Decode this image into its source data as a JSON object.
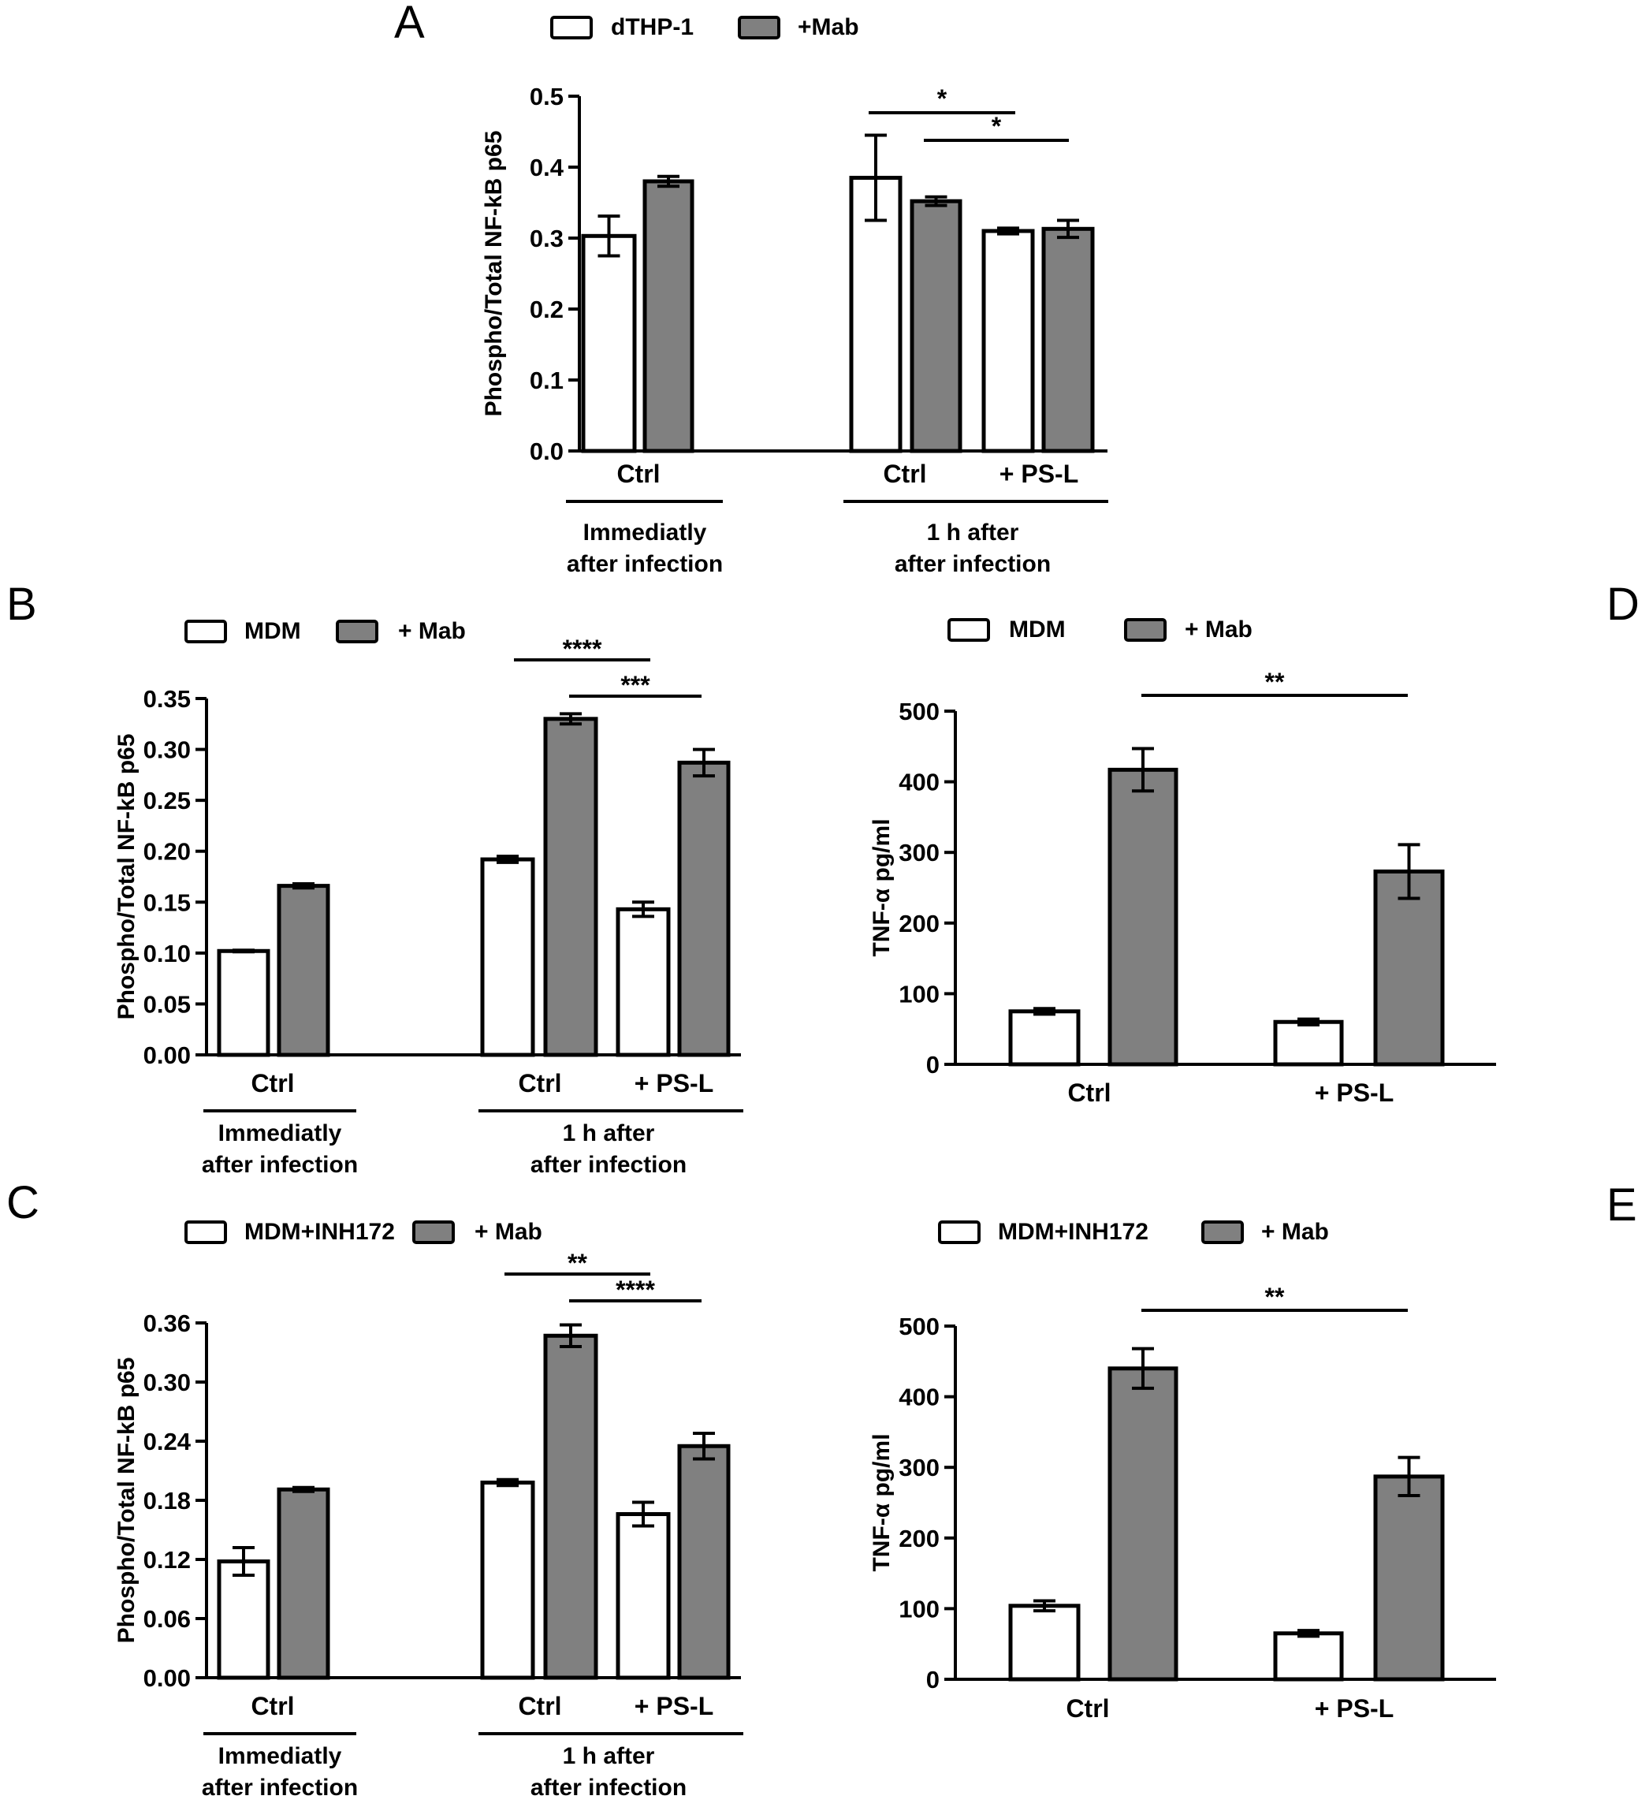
{
  "chart_data": [
    {
      "panel": "A",
      "type": "bar",
      "ylabel": "Phospho/Total NF-kB p65",
      "ylim": [
        0,
        0.5
      ],
      "yticks": [
        "0.0",
        "0.1",
        "0.2",
        "0.3",
        "0.4",
        "0.5"
      ],
      "legend": [
        {
          "name": "dTHP-1",
          "color": "#ffffff"
        },
        {
          "name": "+Mab",
          "color": "#808080"
        }
      ],
      "categories": [
        "Ctrl",
        "Ctrl",
        "+ PS-L"
      ],
      "groups": [
        {
          "label": "Immediatly\nafter infection"
        },
        {
          "label": "1 h after\nafter infection"
        }
      ],
      "series": [
        {
          "name": "dTHP-1",
          "values": [
            0.303,
            0.385,
            0.31
          ],
          "errors": [
            0.028,
            0.06,
            0.004
          ]
        },
        {
          "name": "+Mab",
          "values": [
            0.38,
            0.352,
            0.313
          ],
          "errors": [
            0.007,
            0.006,
            0.012
          ]
        }
      ],
      "annotations": [
        "*",
        "*"
      ]
    },
    {
      "panel": "B",
      "type": "bar",
      "ylabel": "Phospho/Total NF-kB p65",
      "ylim": [
        0,
        0.35
      ],
      "yticks": [
        "0.00",
        "0.05",
        "0.10",
        "0.15",
        "0.20",
        "0.25",
        "0.30",
        "0.35"
      ],
      "legend": [
        {
          "name": "MDM",
          "color": "#ffffff"
        },
        {
          "name": "+ Mab",
          "color": "#808080"
        }
      ],
      "categories": [
        "Ctrl",
        "Ctrl",
        "+ PS-L"
      ],
      "groups": [
        {
          "label": "Immediatly\nafter infection"
        },
        {
          "label": "1 h after\nafter infection"
        }
      ],
      "series": [
        {
          "name": "MDM",
          "values": [
            0.102,
            0.192,
            0.143
          ],
          "errors": [
            0.0008,
            0.003,
            0.007
          ]
        },
        {
          "name": "+ Mab",
          "values": [
            0.166,
            0.33,
            0.287
          ],
          "errors": [
            0.002,
            0.005,
            0.013
          ]
        }
      ],
      "annotations": [
        "****",
        "***"
      ]
    },
    {
      "panel": "C",
      "type": "bar",
      "ylabel": "Phospho/Total NF-kB p65",
      "ylim": [
        0,
        0.36
      ],
      "yticks": [
        "0.00",
        "0.06",
        "0.12",
        "0.18",
        "0.24",
        "0.30",
        "0.36"
      ],
      "legend": [
        {
          "name": "MDM+INH172",
          "color": "#ffffff"
        },
        {
          "name": "+ Mab",
          "color": "#808080"
        }
      ],
      "categories": [
        "Ctrl",
        "Ctrl",
        "+ PS-L"
      ],
      "groups": [
        {
          "label": "Immediatly\nafter infection"
        },
        {
          "label": "1 h after\nafter infection"
        }
      ],
      "series": [
        {
          "name": "MDM+INH172",
          "values": [
            0.118,
            0.198,
            0.166
          ],
          "errors": [
            0.014,
            0.003,
            0.012
          ]
        },
        {
          "name": "+ Mab",
          "values": [
            0.191,
            0.347,
            0.235
          ],
          "errors": [
            0.002,
            0.011,
            0.013
          ]
        }
      ],
      "annotations": [
        "**",
        "****"
      ]
    },
    {
      "panel": "D",
      "type": "bar",
      "ylabel": "TNF-α pg/ml",
      "ylim": [
        0,
        500
      ],
      "yticks": [
        "0",
        "100",
        "200",
        "300",
        "400",
        "500"
      ],
      "legend": [
        {
          "name": "MDM",
          "color": "#ffffff"
        },
        {
          "name": "+ Mab",
          "color": "#808080"
        }
      ],
      "categories": [
        "Ctrl",
        "+ PS-L"
      ],
      "series": [
        {
          "name": "MDM",
          "values": [
            75,
            60
          ],
          "errors": [
            4,
            4
          ]
        },
        {
          "name": "+ Mab",
          "values": [
            417,
            273
          ],
          "errors": [
            30,
            38
          ]
        }
      ],
      "annotations": [
        "**"
      ]
    },
    {
      "panel": "E",
      "type": "bar",
      "ylabel": "TNF-α pg/ml",
      "ylim": [
        0,
        500
      ],
      "yticks": [
        "0",
        "100",
        "200",
        "300",
        "400",
        "500"
      ],
      "legend": [
        {
          "name": "MDM+INH172",
          "color": "#ffffff"
        },
        {
          "name": "+ Mab",
          "color": "#808080"
        }
      ],
      "categories": [
        "Ctrl",
        "+ PS-L"
      ],
      "series": [
        {
          "name": "MDM+INH172",
          "values": [
            104,
            65
          ],
          "errors": [
            7,
            4
          ]
        },
        {
          "name": "+ Mab",
          "values": [
            440,
            287
          ],
          "errors": [
            28,
            27
          ]
        }
      ],
      "annotations": [
        "**"
      ]
    }
  ]
}
